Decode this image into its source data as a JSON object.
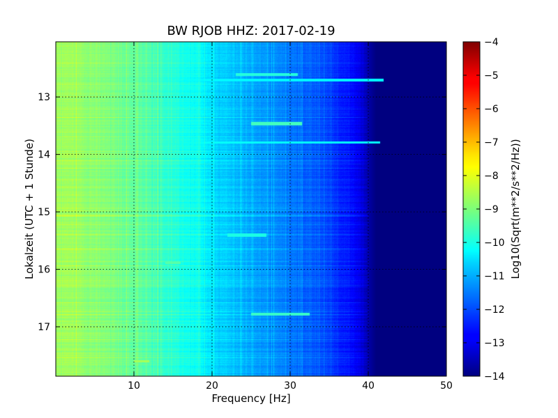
{
  "chart_data": {
    "type": "heatmap",
    "title": "BW RJOB HHZ: 2017-02-19",
    "xlabel": "Frequency [Hz]",
    "ylabel": "Lokalzeit (UTC + 1 Stunde)",
    "xlim": [
      0,
      50
    ],
    "ylim": [
      17.86,
      12.04
    ],
    "y_axis_inverted": true,
    "x_ticks": [
      10,
      20,
      30,
      40,
      50
    ],
    "y_ticks": [
      13,
      14,
      15,
      16,
      17
    ],
    "grid": true,
    "colormap": "jet",
    "colorbar": {
      "label": "Log10(Sqrt(m**2/s**2/Hz))",
      "range": [
        -14,
        -4
      ],
      "ticks": [
        -4,
        -5,
        -6,
        -7,
        -8,
        -9,
        -10,
        -11,
        -12,
        -13,
        -14
      ]
    },
    "spectrum_profile": {
      "frequency_hz": [
        0,
        2,
        5,
        8,
        10,
        12,
        15,
        18,
        20,
        22,
        25,
        28,
        30,
        32,
        34,
        36,
        38,
        39,
        40,
        41,
        42,
        45,
        50
      ],
      "level": [
        -8.7,
        -8.7,
        -8.9,
        -9.1,
        -9.3,
        -9.5,
        -9.9,
        -10.2,
        -10.6,
        -10.8,
        -11.1,
        -11.4,
        -11.6,
        -11.8,
        -12.0,
        -12.3,
        -12.7,
        -13.0,
        -13.6,
        -14.0,
        -14.0,
        -14.0,
        -14.0
      ]
    },
    "highlights": [
      {
        "time_start": 12.58,
        "time_end": 12.64,
        "f_start": 23,
        "f_end": 31,
        "level": -9.9
      },
      {
        "time_start": 12.68,
        "time_end": 12.73,
        "f_start": 0,
        "f_end": 42,
        "level": -10.3
      },
      {
        "time_start": 13.44,
        "time_end": 13.49,
        "f_start": 25,
        "f_end": 31.5,
        "level": -9.6
      },
      {
        "time_start": 13.77,
        "time_end": 13.81,
        "f_start": 0,
        "f_end": 41.5,
        "level": -10.2
      },
      {
        "time_start": 15.38,
        "time_end": 15.43,
        "f_start": 22,
        "f_end": 27,
        "level": -10.0
      },
      {
        "time_start": 15.86,
        "time_end": 15.91,
        "f_start": 14,
        "f_end": 16,
        "level": -9.4
      },
      {
        "time_start": 16.76,
        "time_end": 16.81,
        "f_start": 25,
        "f_end": 32.5,
        "level": -9.7
      },
      {
        "time_start": 17.58,
        "time_end": 17.62,
        "f_start": 10,
        "f_end": 12,
        "level": -8.6
      }
    ]
  }
}
